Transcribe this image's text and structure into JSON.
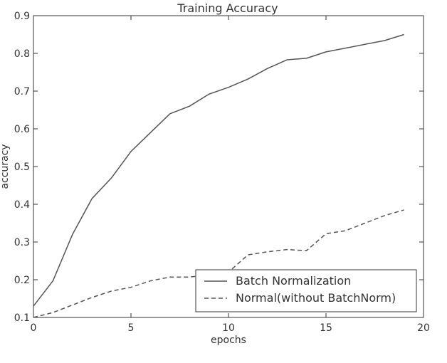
{
  "chart_data": {
    "type": "line",
    "title": "Training Accuracy",
    "xlabel": "epochs",
    "ylabel": "accuracy",
    "xlim": [
      0,
      20
    ],
    "ylim": [
      0.1,
      0.9
    ],
    "xticks": [
      "0",
      "5",
      "10",
      "15",
      "20"
    ],
    "xtick_values": [
      0,
      5,
      10,
      15,
      20
    ],
    "yticks": [
      "0.1",
      "0.2",
      "0.3",
      "0.4",
      "0.5",
      "0.6",
      "0.7",
      "0.8",
      "0.9"
    ],
    "ytick_values": [
      0.1,
      0.2,
      0.3,
      0.4,
      0.5,
      0.6,
      0.7,
      0.8,
      0.9
    ],
    "grid": false,
    "legend_position": "lower-right",
    "x": [
      0,
      1,
      2,
      3,
      4,
      5,
      6,
      7,
      8,
      9,
      10,
      11,
      12,
      13,
      14,
      15,
      16,
      17,
      18,
      19
    ],
    "series": [
      {
        "name": "Batch Normalization",
        "style": "solid",
        "color": "#555555",
        "values": [
          0.13,
          0.197,
          0.32,
          0.415,
          0.47,
          0.54,
          0.59,
          0.64,
          0.66,
          0.692,
          0.71,
          0.732,
          0.76,
          0.783,
          0.787,
          0.804,
          0.814,
          0.824,
          0.834,
          0.85
        ]
      },
      {
        "name": "Normal(without BatchNorm)",
        "style": "dashed",
        "color": "#555555",
        "values": [
          0.1,
          0.113,
          0.133,
          0.153,
          0.17,
          0.18,
          0.197,
          0.207,
          0.207,
          0.213,
          0.22,
          0.266,
          0.274,
          0.28,
          0.277,
          0.322,
          0.33,
          0.35,
          0.37,
          0.385
        ]
      }
    ]
  }
}
